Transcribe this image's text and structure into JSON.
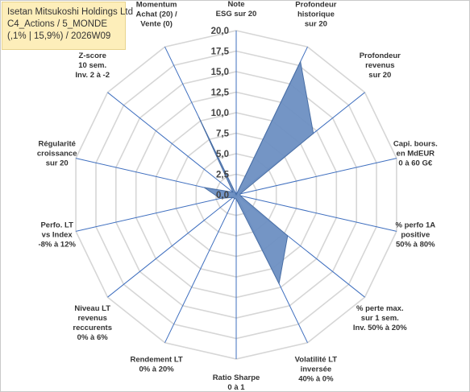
{
  "header": {
    "line1": "Isetan Mitsukoshi Holdings Ltd",
    "line2": "C4_Actions / 5_MONDE",
    "line3": "(,1% | 15,9%) / 2026W09"
  },
  "colors": {
    "fill": "#6d8fc2",
    "stroke": "#4a6fa5",
    "grid": "#d6d6d6",
    "spoke": "#3f6fbf",
    "title_bg": "#fdeeba"
  },
  "chart_data": {
    "type": "radar",
    "rmin": 0,
    "rmax": 20,
    "ticks": [
      "0,0",
      "2,5",
      "5,0",
      "7,5",
      "10,0",
      "12,5",
      "15,0",
      "17,5",
      "20,0"
    ],
    "tick_values": [
      0,
      2.5,
      5,
      7.5,
      10,
      12.5,
      15,
      17.5,
      20
    ],
    "axes": [
      [
        "Note",
        "ESG sur 20"
      ],
      [
        "Profondeur",
        "historique",
        "sur 20"
      ],
      [
        "Profondeur",
        "revenus",
        "sur 20"
      ],
      [
        "Capi. bours.",
        "en MdEUR",
        "0 à 60 G€"
      ],
      [
        "% perfo 1A",
        "positive",
        "50% à 80%"
      ],
      [
        "% perte max.",
        "sur 1 sem.",
        "Inv. 50% à 20%"
      ],
      [
        "Volatilité LT",
        "inversée",
        "40% à 0%"
      ],
      [
        "Ratio Sharpe",
        "0 à 1"
      ],
      [
        "Rendement LT",
        "0% à 20%"
      ],
      [
        "Niveau LT",
        "revenus",
        "reccurents",
        "0% à 6%"
      ],
      [
        "Perfo. LT",
        "vs Index",
        "-8% à 12%"
      ],
      [
        "Régularité",
        "croissance",
        "sur 20"
      ],
      [
        "Z-score",
        "10 sem.",
        "Inv. 2 à -2"
      ],
      [
        "Momentum",
        "Achat (20) /",
        "Vente (0)"
      ]
    ],
    "series": [
      {
        "values": [
          0,
          18,
          12,
          0.5,
          0.5,
          8,
          12,
          0.5,
          0.5,
          0.5,
          2,
          4,
          0.5,
          10.5
        ]
      }
    ]
  }
}
